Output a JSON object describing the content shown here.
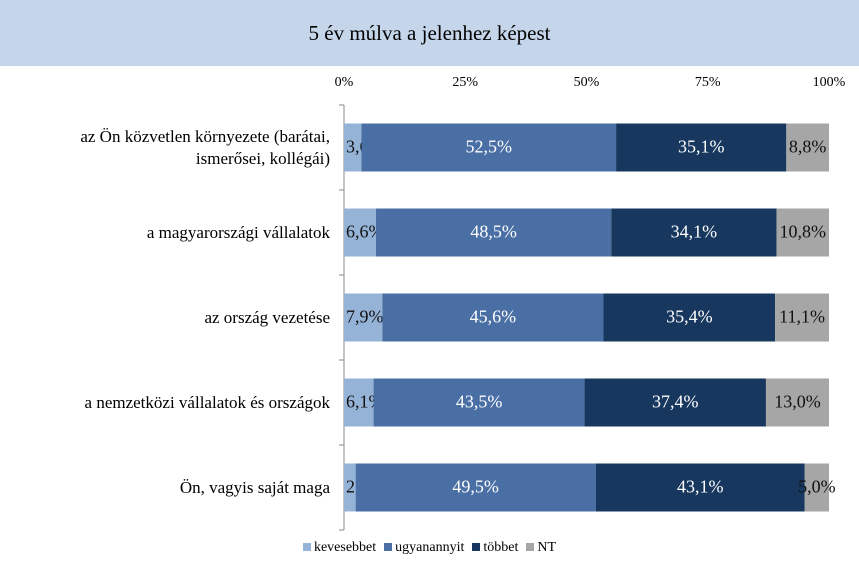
{
  "chart_data": {
    "type": "stacked_bar_horizontal",
    "title": "5 év múlva a jelenhez képest",
    "categories": [
      "az Ön közvetlen környezete (barátai,\nismerősei, kollégái)",
      "a magyarországi vállalatok",
      "az ország vezetése",
      "a nemzetközi vállalatok és országok",
      "Ön, vagyis saját maga"
    ],
    "series": [
      {
        "name": "kevesebbet",
        "color": "#95b3d7",
        "values": [
          3.6,
          6.6,
          7.9,
          6.1,
          2.4
        ],
        "value_labels": [
          "3,6%",
          "6,6%",
          "7,9%",
          "6,1%",
          "2,4%"
        ]
      },
      {
        "name": "ugyanannyit",
        "color": "#4a6fa5",
        "values": [
          52.5,
          48.5,
          45.6,
          43.5,
          49.5
        ],
        "value_labels": [
          "52,5%",
          "48,5%",
          "45,6%",
          "43,5%",
          "49,5%"
        ]
      },
      {
        "name": "többet",
        "color": "#17375e",
        "values": [
          35.1,
          34.1,
          35.4,
          37.4,
          43.1
        ],
        "value_labels": [
          "35,1%",
          "34,1%",
          "35,4%",
          "37,4%",
          "43,1%"
        ]
      },
      {
        "name": "NT",
        "color": "#a6a6a6",
        "values": [
          8.8,
          10.8,
          11.1,
          13.0,
          5.0
        ],
        "value_labels": [
          "8,8%",
          "10,8%",
          "11,1%",
          "13,0%",
          "5,0%"
        ]
      }
    ],
    "xlim": [
      0,
      100
    ],
    "xticks": [
      {
        "value": 0,
        "label": "0%"
      },
      {
        "value": 25,
        "label": "25%"
      },
      {
        "value": 50,
        "label": "50%"
      },
      {
        "value": 75,
        "label": "75%"
      },
      {
        "value": 100,
        "label": "100%"
      }
    ],
    "legend": "bottom"
  }
}
